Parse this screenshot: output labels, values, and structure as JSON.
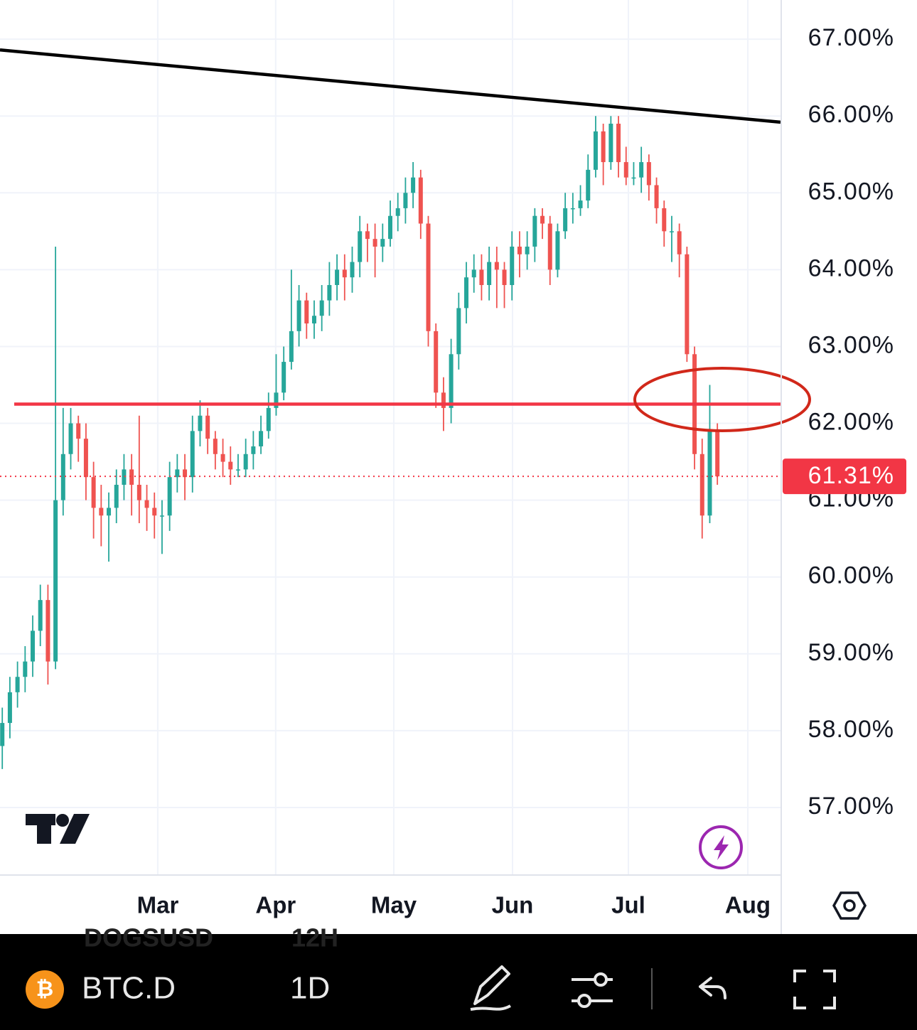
{
  "chart_data": {
    "type": "candlestick",
    "xlim": [
      -0.3,
      102.3
    ],
    "ylim": [
      56.13,
      67.51
    ],
    "grid": true,
    "up_color": "#26a69a",
    "down_color": "#ef5350",
    "xticks": [
      {
        "value": 20.44,
        "label": "Mar"
      },
      {
        "value": 35.94,
        "label": "Apr"
      },
      {
        "value": 51.47,
        "label": "May"
      },
      {
        "value": 67.07,
        "label": "Jun"
      },
      {
        "value": 82.3,
        "label": "Jul"
      },
      {
        "value": 98.0,
        "label": "Aug"
      }
    ],
    "yticks": [
      {
        "value": 57,
        "label": "57.00%"
      },
      {
        "value": 58,
        "label": "58.00%"
      },
      {
        "value": 59,
        "label": "59.00%"
      },
      {
        "value": 60,
        "label": "60.00%"
      },
      {
        "value": 61,
        "label": "61.00%"
      },
      {
        "value": 62,
        "label": "62.00%"
      },
      {
        "value": 63,
        "label": "63.00%"
      },
      {
        "value": 64,
        "label": "64.00%"
      },
      {
        "value": 65,
        "label": "65.00%"
      },
      {
        "value": 66,
        "label": "66.00%"
      },
      {
        "value": 67,
        "label": "67.00%"
      }
    ],
    "open": [
      57.8,
      58.1,
      58.5,
      58.7,
      58.9,
      59.3,
      59.7,
      58.9,
      61.0,
      61.6,
      62.0,
      61.8,
      61.3,
      60.9,
      60.8,
      60.9,
      61.2,
      61.4,
      61.2,
      61.0,
      60.9,
      60.8,
      60.8,
      61.3,
      61.4,
      61.3,
      61.9,
      62.1,
      61.8,
      61.6,
      61.5,
      61.4,
      61.4,
      61.6,
      61.7,
      61.9,
      62.2,
      62.4,
      62.8,
      63.2,
      63.6,
      63.3,
      63.4,
      63.6,
      63.8,
      64.0,
      63.9,
      64.1,
      64.5,
      64.4,
      64.3,
      64.4,
      64.7,
      64.8,
      65.0,
      65.2,
      64.6,
      63.2,
      62.4,
      62.2,
      62.9,
      63.5,
      63.9,
      64.0,
      63.8,
      64.1,
      64.0,
      63.8,
      64.3,
      64.2,
      64.3,
      64.7,
      64.6,
      64.0,
      64.5,
      64.8,
      64.8,
      64.9,
      65.3,
      65.8,
      65.4,
      65.9,
      65.4,
      65.2,
      65.2,
      65.4,
      65.1,
      64.8,
      64.5,
      64.5,
      64.2,
      62.9,
      61.6,
      60.8,
      61.9
    ],
    "high": [
      58.3,
      58.7,
      58.9,
      59.1,
      59.5,
      59.9,
      59.9,
      64.3,
      62.2,
      62.2,
      62.1,
      62.0,
      61.5,
      61.2,
      61.1,
      61.4,
      61.6,
      61.6,
      62.1,
      61.2,
      61.1,
      61.0,
      61.5,
      61.6,
      61.6,
      62.1,
      62.3,
      62.2,
      61.9,
      61.8,
      61.7,
      61.6,
      61.8,
      61.9,
      62.1,
      62.4,
      62.9,
      63.0,
      64.0,
      63.8,
      63.7,
      63.6,
      63.8,
      64.1,
      64.2,
      64.2,
      64.3,
      64.7,
      64.6,
      64.6,
      64.6,
      64.9,
      65.0,
      65.2,
      65.4,
      65.3,
      64.7,
      63.3,
      62.6,
      63.1,
      63.7,
      64.1,
      64.2,
      64.2,
      64.3,
      64.3,
      64.1,
      64.5,
      64.5,
      64.5,
      64.8,
      64.8,
      64.7,
      64.6,
      65.0,
      65.0,
      65.1,
      65.5,
      66.0,
      65.9,
      66.0,
      66.0,
      65.6,
      65.4,
      65.6,
      65.5,
      65.2,
      64.9,
      64.7,
      64.6,
      64.3,
      63.0,
      61.8,
      62.5,
      62.0
    ],
    "low": [
      57.5,
      57.9,
      58.3,
      58.5,
      58.7,
      59.1,
      58.6,
      58.8,
      60.8,
      61.4,
      61.5,
      61.0,
      60.5,
      60.4,
      60.2,
      60.7,
      61.0,
      60.8,
      60.7,
      60.6,
      60.5,
      60.3,
      60.6,
      61.1,
      61.0,
      61.1,
      61.7,
      61.6,
      61.4,
      61.3,
      61.2,
      61.3,
      61.3,
      61.4,
      61.6,
      61.8,
      62.1,
      62.3,
      62.7,
      63.0,
      63.1,
      63.1,
      63.2,
      63.4,
      63.6,
      63.6,
      63.7,
      63.9,
      64.1,
      63.9,
      64.1,
      64.3,
      64.5,
      64.6,
      64.8,
      64.4,
      63.0,
      62.2,
      61.9,
      62.0,
      62.7,
      63.3,
      63.7,
      63.6,
      63.6,
      63.5,
      63.5,
      63.6,
      63.9,
      64.0,
      64.1,
      64.4,
      63.8,
      63.9,
      64.4,
      64.6,
      64.7,
      64.8,
      65.2,
      65.1,
      65.3,
      65.2,
      65.1,
      65.1,
      65.0,
      64.9,
      64.6,
      64.3,
      64.1,
      63.9,
      62.8,
      61.4,
      60.5,
      60.7,
      61.2
    ],
    "close": [
      58.1,
      58.5,
      58.7,
      58.9,
      59.3,
      59.7,
      58.9,
      61.0,
      61.6,
      62.0,
      61.8,
      61.3,
      60.9,
      60.8,
      60.9,
      61.2,
      61.4,
      61.2,
      61.0,
      60.9,
      60.8,
      60.8,
      61.3,
      61.4,
      61.3,
      61.9,
      62.1,
      61.8,
      61.6,
      61.5,
      61.4,
      61.4,
      61.6,
      61.7,
      61.9,
      62.2,
      62.4,
      62.8,
      63.2,
      63.6,
      63.3,
      63.4,
      63.6,
      63.8,
      64.0,
      63.9,
      64.1,
      64.5,
      64.4,
      64.3,
      64.4,
      64.7,
      64.8,
      65.0,
      65.2,
      64.6,
      63.2,
      62.4,
      62.2,
      62.9,
      63.5,
      63.9,
      64.0,
      63.8,
      64.1,
      64.0,
      63.8,
      64.3,
      64.2,
      64.3,
      64.7,
      64.6,
      64.0,
      64.5,
      64.8,
      64.8,
      64.9,
      65.3,
      65.8,
      65.4,
      65.9,
      65.4,
      65.2,
      65.2,
      65.4,
      65.1,
      64.8,
      64.5,
      64.5,
      64.2,
      62.9,
      61.6,
      60.8,
      61.9,
      61.31
    ],
    "last_price": {
      "value": 61.31,
      "label": "61.31%",
      "color": "#f23645"
    },
    "trendlines": [
      {
        "color": "#000000",
        "x": [
          -0.3,
          102.3
        ],
        "y": [
          66.86,
          65.92
        ]
      },
      {
        "color": "#f23645",
        "x": [
          1.57,
          102.3
        ],
        "y": [
          62.25,
          62.25
        ]
      }
    ]
  },
  "toolbar": {
    "symbol": "BTC.D",
    "interval": "1D",
    "ghost_symbol": "DOGSUSD",
    "ghost_interval": "12H"
  }
}
